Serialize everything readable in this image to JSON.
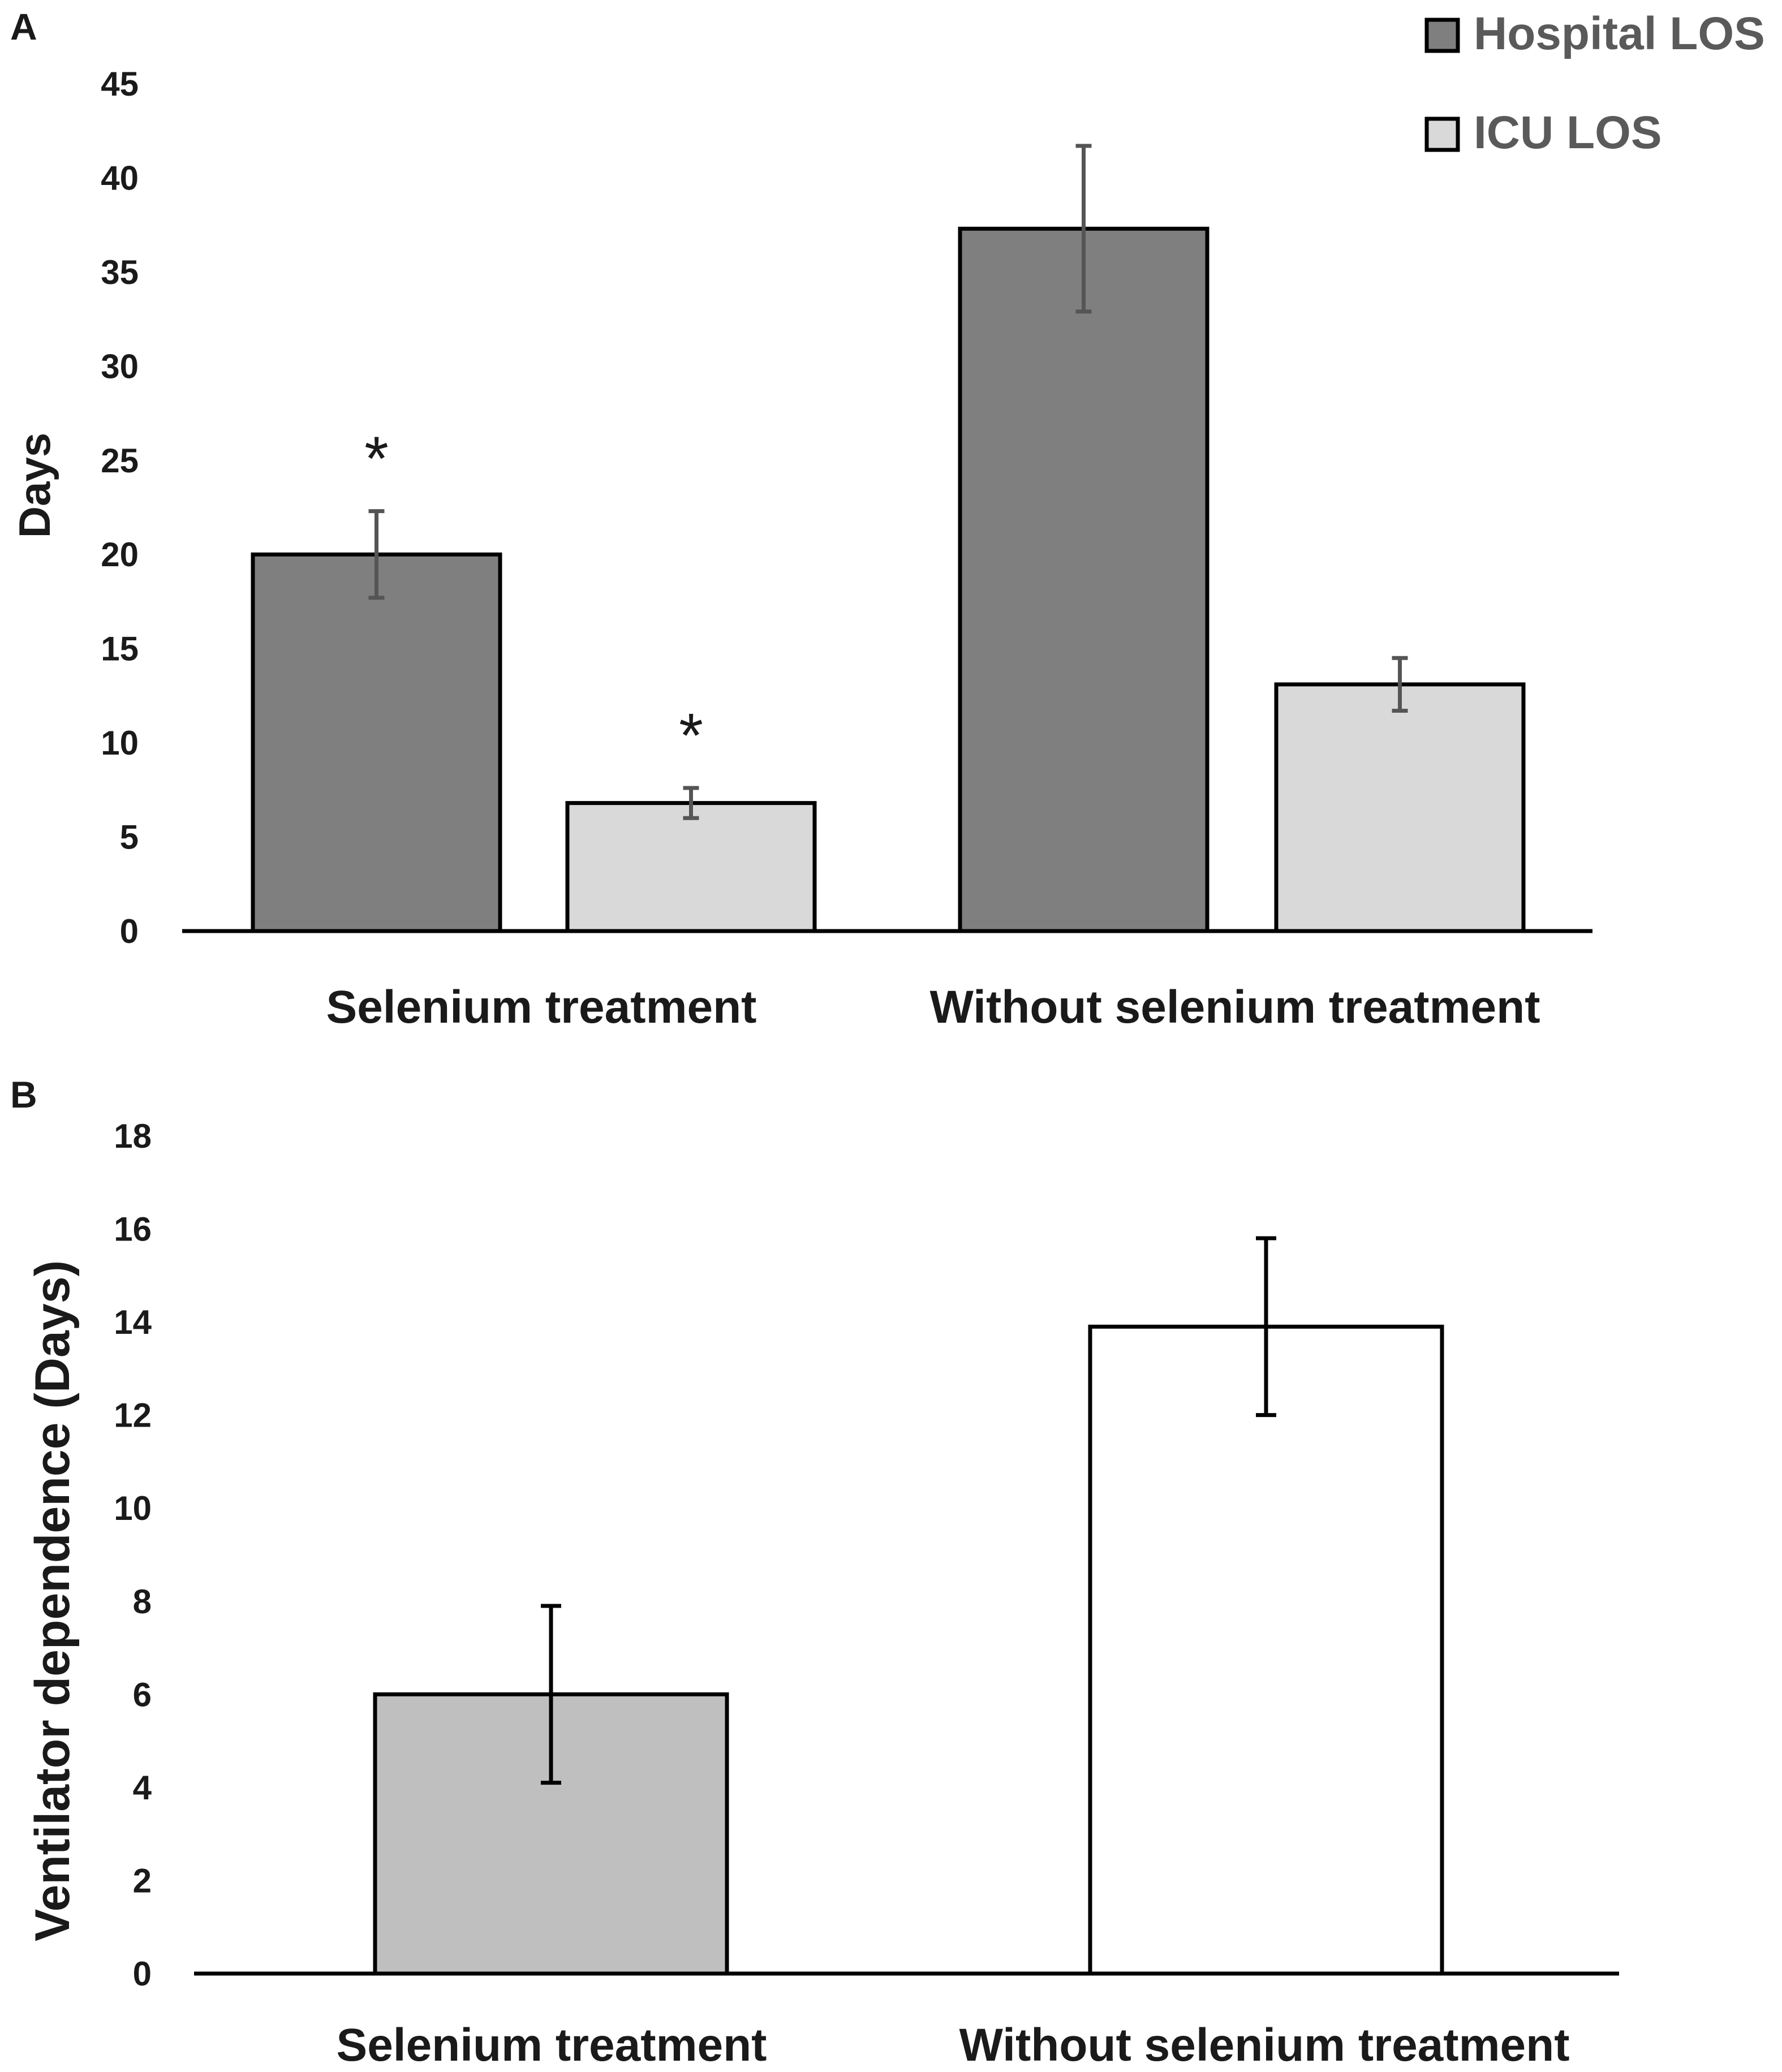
{
  "chart_data": [
    {
      "panel": "A",
      "type": "bar",
      "title": "",
      "xlabel": "",
      "ylabel": "Days",
      "ylim": [
        0,
        45
      ],
      "yticks": [
        0,
        5,
        10,
        15,
        20,
        25,
        30,
        35,
        40,
        45
      ],
      "categories": [
        "Selenium treatment",
        "Without selenium treatment"
      ],
      "series": [
        {
          "name": "Hospital LOS",
          "color": "#7f7f7f",
          "values": [
            20.0,
            37.3
          ],
          "errors": [
            2.3,
            4.4
          ]
        },
        {
          "name": "ICU LOS",
          "color": "#d9d9d9",
          "values": [
            6.8,
            13.1
          ],
          "errors": [
            0.8,
            1.4
          ]
        }
      ],
      "annotations": [
        {
          "text": "*",
          "category": 0,
          "series": 0
        },
        {
          "text": "*",
          "category": 0,
          "series": 1
        }
      ],
      "legend": "top-right"
    },
    {
      "panel": "B",
      "type": "bar",
      "title": "",
      "xlabel": "",
      "ylabel": "Ventilator dependence  (Days)",
      "ylim": [
        0,
        18
      ],
      "yticks": [
        0,
        2,
        4,
        6,
        8,
        10,
        12,
        14,
        16,
        18
      ],
      "categories": [
        "Selenium treatment",
        "Without selenium treatment"
      ],
      "values": [
        6.0,
        13.9
      ],
      "errors": [
        1.9,
        1.9
      ],
      "colors": [
        "#bfbfbf",
        "#ffffff"
      ],
      "legend": "none"
    }
  ]
}
